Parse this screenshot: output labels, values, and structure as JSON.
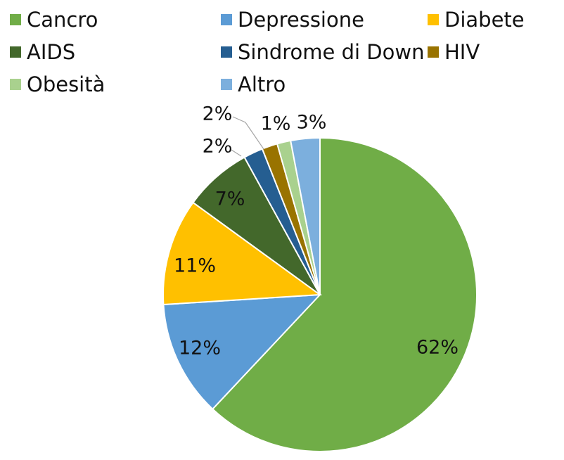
{
  "chart_data": {
    "type": "pie",
    "legend_position": "top",
    "slices": [
      {
        "label": "Cancro",
        "value": 62,
        "display": "62%",
        "color": "#70AD47"
      },
      {
        "label": "Depressione",
        "value": 12,
        "display": "12%",
        "color": "#5B9BD5"
      },
      {
        "label": "Diabete",
        "value": 11,
        "display": "11%",
        "color": "#FFC000"
      },
      {
        "label": "AIDS",
        "value": 7,
        "display": "7%",
        "color": "#43682B"
      },
      {
        "label": "Sindrome di Down",
        "value": 2,
        "display": "2%",
        "color": "#255E91"
      },
      {
        "label": "HIV",
        "value": 1.6,
        "display": "2%",
        "color": "#997300"
      },
      {
        "label": "Obesità",
        "value": 1.4,
        "display": "1%",
        "color": "#A9D18E"
      },
      {
        "label": "Altro",
        "value": 3,
        "display": "3%",
        "color": "#7CAFDD"
      }
    ],
    "legend": [
      {
        "label": "Cancro",
        "color": "#70AD47"
      },
      {
        "label": "Depressione",
        "color": "#5B9BD5"
      },
      {
        "label": "Diabete",
        "color": "#FFC000"
      },
      {
        "label": "AIDS",
        "color": "#43682B"
      },
      {
        "label": "Sindrome di Down",
        "color": "#255E91"
      },
      {
        "label": "HIV",
        "color": "#997300"
      },
      {
        "label": "Obesità",
        "color": "#A9D18E"
      },
      {
        "label": "Altro",
        "color": "#7CAFDD"
      }
    ]
  }
}
